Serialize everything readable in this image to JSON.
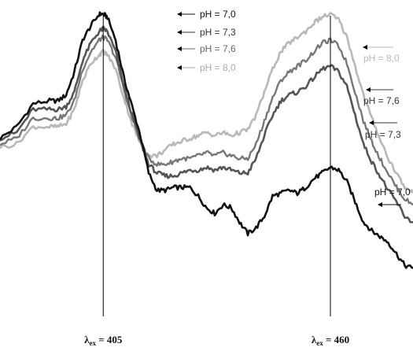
{
  "chart_data": {
    "type": "line",
    "x_unit": "nm",
    "xlim": [
      380,
      480
    ],
    "ylim": [
      0,
      100
    ],
    "grid": false,
    "markers": [
      {
        "label": "λex = 405",
        "sym": "λ",
        "sub": "ex",
        "value_text": " = 405",
        "x": 405
      },
      {
        "label": "λex = 460",
        "sym": "λ",
        "sub": "ex",
        "value_text": " = 460",
        "x": 460
      }
    ],
    "series": [
      {
        "name": "pH = 7,0",
        "color": "#111111",
        "stroke_width": 2.6,
        "x": [
          380,
          384,
          388,
          392,
          394,
          396,
          398,
          400,
          402,
          404,
          405,
          406,
          408,
          410,
          412,
          414,
          416,
          418,
          420,
          422,
          424,
          426,
          428,
          430,
          432,
          434,
          436,
          438,
          440,
          442,
          444,
          446,
          448,
          450,
          452,
          454,
          456,
          458,
          460,
          462,
          464,
          466,
          468,
          470,
          472,
          474,
          476,
          478,
          480
        ],
        "values": [
          57,
          61,
          69,
          70,
          70,
          72,
          80,
          91,
          96,
          100,
          100,
          99,
          91,
          78,
          68,
          58,
          45,
          39,
          39,
          40,
          40,
          40,
          37,
          33,
          31,
          34,
          33,
          28,
          24,
          26,
          30,
          37,
          38,
          39,
          38,
          40,
          43,
          45,
          47,
          46,
          42,
          35,
          28,
          25,
          23,
          21,
          17,
          13,
          12
        ]
      },
      {
        "name": "pH = 7,3",
        "color": "#555555",
        "stroke_width": 2.6,
        "x": [
          380,
          384,
          388,
          392,
          394,
          396,
          398,
          400,
          402,
          404,
          405,
          406,
          408,
          410,
          412,
          414,
          416,
          418,
          420,
          422,
          424,
          426,
          428,
          430,
          432,
          434,
          436,
          438,
          440,
          442,
          444,
          446,
          448,
          450,
          452,
          454,
          456,
          458,
          460,
          462,
          464,
          466,
          468,
          470,
          472,
          474,
          476,
          478,
          480
        ],
        "values": [
          57,
          59,
          67,
          67,
          67,
          68,
          73,
          84,
          90,
          94,
          95,
          94,
          87,
          75,
          65,
          56,
          48,
          45,
          44,
          44,
          45,
          46,
          46,
          47,
          46,
          47,
          46,
          45,
          45,
          50,
          58,
          65,
          70,
          72,
          73,
          75,
          78,
          81,
          82,
          80,
          75,
          65,
          55,
          49,
          44,
          39,
          35,
          30,
          28
        ]
      },
      {
        "name": "pH = 7,6",
        "color": "#777777",
        "stroke_width": 2.4,
        "x": [
          380,
          384,
          388,
          392,
          394,
          396,
          398,
          400,
          402,
          404,
          405,
          406,
          408,
          410,
          412,
          414,
          416,
          418,
          420,
          422,
          424,
          426,
          428,
          430,
          432,
          434,
          436,
          438,
          440,
          442,
          444,
          446,
          448,
          450,
          452,
          454,
          456,
          458,
          460,
          462,
          464,
          466,
          468,
          470,
          472,
          474,
          476,
          478,
          480
        ],
        "values": [
          55,
          57,
          64,
          64,
          64,
          65,
          70,
          81,
          87,
          91,
          92,
          91,
          85,
          74,
          64,
          56,
          50,
          48,
          48,
          49,
          50,
          50,
          51,
          52,
          51,
          52,
          51,
          50,
          50,
          55,
          63,
          71,
          77,
          80,
          82,
          84,
          87,
          90,
          91,
          89,
          83,
          73,
          63,
          56,
          50,
          45,
          40,
          36,
          34
        ]
      },
      {
        "name": "pH = 8,0",
        "color": "#b8b8b8",
        "stroke_width": 2.6,
        "x": [
          380,
          384,
          388,
          392,
          394,
          396,
          398,
          400,
          402,
          404,
          405,
          406,
          408,
          410,
          412,
          414,
          416,
          418,
          420,
          422,
          424,
          426,
          428,
          430,
          432,
          434,
          436,
          438,
          440,
          442,
          444,
          446,
          448,
          450,
          452,
          454,
          456,
          458,
          460,
          462,
          464,
          466,
          468,
          470,
          472,
          474,
          476,
          478,
          480
        ],
        "values": [
          54,
          55,
          61,
          61,
          61,
          62,
          67,
          77,
          83,
          86,
          87,
          86,
          81,
          71,
          62,
          55,
          51,
          51,
          53,
          55,
          56,
          57,
          58,
          59,
          58,
          59,
          58,
          59,
          60,
          65,
          73,
          81,
          87,
          90,
          92,
          94,
          97,
          99,
          100,
          98,
          92,
          82,
          72,
          64,
          57,
          50,
          45,
          40,
          38
        ]
      }
    ],
    "legend_left": [
      {
        "text": "pH = 7,0",
        "color": "#111111"
      },
      {
        "text": "pH = 7,3",
        "color": "#333333"
      },
      {
        "text": "pH = 7,6",
        "color": "#666666"
      },
      {
        "text": "pH = 8,0",
        "color": "#aaaaaa"
      }
    ],
    "legend_right": [
      {
        "text": "pH = 8,0",
        "color": "#bbbbbb"
      },
      {
        "text": "pH = 7,6",
        "color": "#333333"
      },
      {
        "text": "pH = 7,3",
        "color": "#333333"
      },
      {
        "text": "pH = 7,0",
        "color": "#111111"
      }
    ]
  }
}
